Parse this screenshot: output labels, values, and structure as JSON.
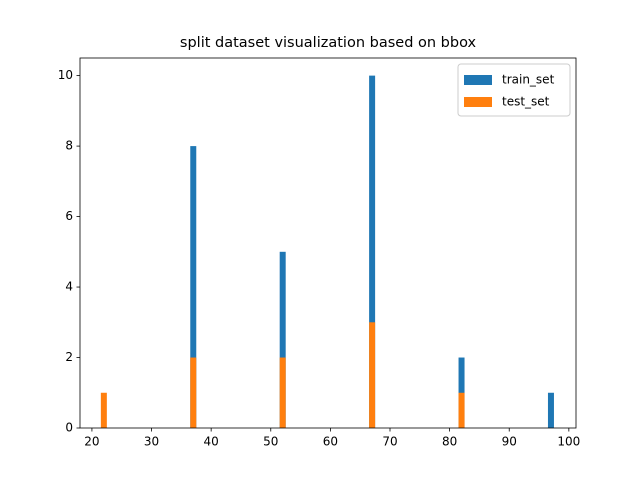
{
  "chart_data": {
    "type": "bar",
    "title": "split dataset visualization based on bbox",
    "x": [
      22,
      37,
      52,
      67,
      82,
      97
    ],
    "series": [
      {
        "name": "train_set",
        "color": "#1f77b4",
        "values": [
          0,
          8,
          5,
          10,
          2,
          1
        ]
      },
      {
        "name": "test_set",
        "color": "#ff7f0e",
        "values": [
          1,
          2,
          2,
          3,
          1,
          0
        ]
      }
    ],
    "xlim": [
      18,
      101.2
    ],
    "xticks": [
      20,
      30,
      40,
      50,
      60,
      70,
      80,
      90,
      100
    ],
    "ylim": [
      0,
      10.5
    ],
    "yticks": [
      0,
      2,
      4,
      6,
      8,
      10
    ],
    "legend": "upper right",
    "grid": false
  }
}
